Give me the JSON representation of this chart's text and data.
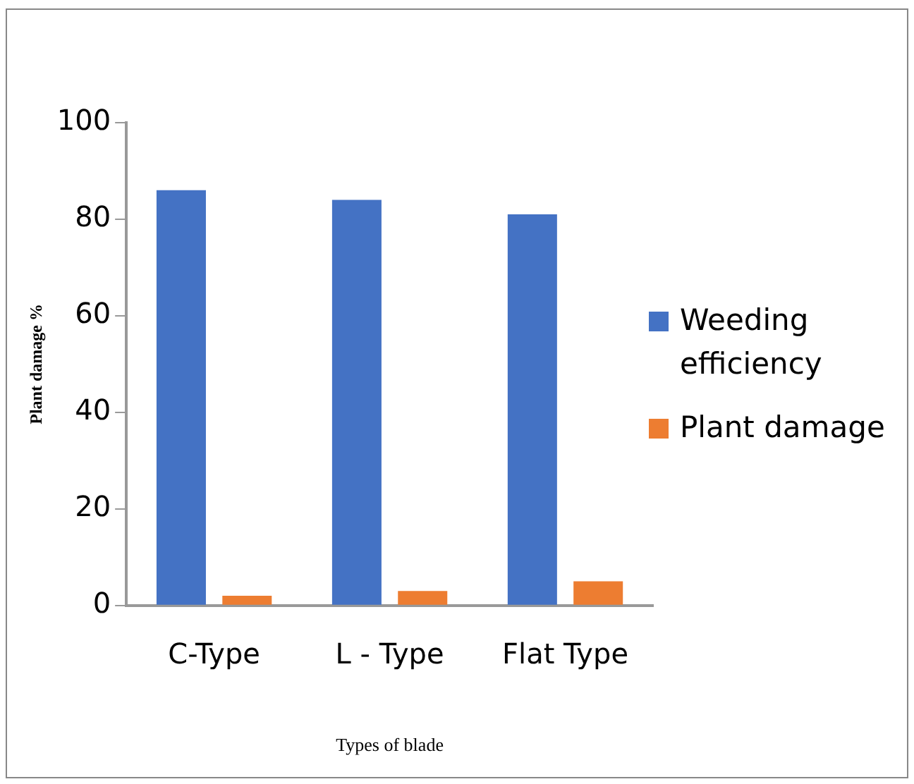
{
  "chart_data": {
    "type": "bar",
    "xlabel": "Types of blade",
    "ylabel": "Plant damage %",
    "categories": [
      "C-Type",
      "L - Type",
      "Flat Type"
    ],
    "series": [
      {
        "name": "Weeding efficiency",
        "color": "#4472c4",
        "values": [
          86,
          84,
          81
        ]
      },
      {
        "name": "Plant damage",
        "color": "#ed7d31",
        "values": [
          2,
          3,
          5
        ]
      }
    ],
    "ylim": [
      0,
      100
    ],
    "yticks": [
      0,
      20,
      40,
      60,
      80,
      100
    ],
    "grid": false,
    "legend": "right"
  }
}
